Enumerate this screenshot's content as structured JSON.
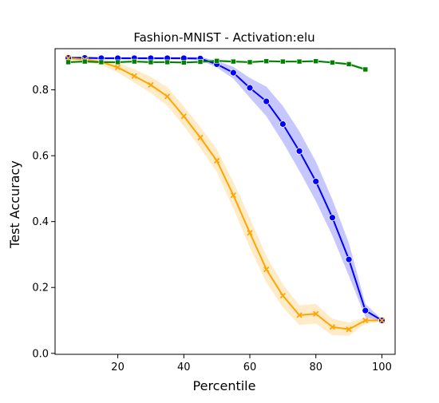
{
  "chart_data": {
    "type": "line",
    "title": "Fashion-MNIST - Activation:elu",
    "xlabel": "Percentile",
    "ylabel": "Test Accuracy",
    "xlim": [
      1,
      104
    ],
    "ylim": [
      -0.003,
      0.925
    ],
    "xticks": [
      20,
      40,
      60,
      80,
      100
    ],
    "yticks": [
      0.0,
      0.2,
      0.4,
      0.6,
      0.8
    ],
    "xtick_labels": [
      "20",
      "40",
      "60",
      "80",
      "100"
    ],
    "ytick_labels": [
      "0.0",
      "0.2",
      "0.4",
      "0.6",
      "0.8"
    ],
    "grid": false,
    "legend": "none",
    "x": [
      5,
      10,
      15,
      20,
      25,
      30,
      35,
      40,
      45,
      50,
      55,
      60,
      65,
      70,
      75,
      80,
      85,
      90,
      95,
      100
    ],
    "series": [
      {
        "color": "#0000ff",
        "marker": "circle",
        "values": [
          0.897,
          0.897,
          0.896,
          0.896,
          0.896,
          0.896,
          0.896,
          0.896,
          0.895,
          0.878,
          0.852,
          0.806,
          0.765,
          0.696,
          0.614,
          0.522,
          0.412,
          0.285,
          0.13,
          0.1
        ],
        "band": [
          0.004,
          0.004,
          0.004,
          0.004,
          0.004,
          0.004,
          0.004,
          0.004,
          0.005,
          0.01,
          0.018,
          0.03,
          0.045,
          0.055,
          0.06,
          0.06,
          0.055,
          0.05,
          0.02,
          0.003
        ]
      },
      {
        "color": "#ffa500",
        "marker": "x",
        "values": [
          0.896,
          0.892,
          0.885,
          0.868,
          0.842,
          0.815,
          0.78,
          0.72,
          0.655,
          0.585,
          0.48,
          0.366,
          0.255,
          0.175,
          0.116,
          0.12,
          0.08,
          0.073,
          0.1,
          0.1
        ],
        "band": [
          0.004,
          0.006,
          0.01,
          0.015,
          0.02,
          0.025,
          0.028,
          0.03,
          0.032,
          0.035,
          0.04,
          0.045,
          0.04,
          0.035,
          0.03,
          0.03,
          0.025,
          0.02,
          0.01,
          0.003
        ]
      },
      {
        "color": "#008000",
        "marker": "square",
        "values": [
          0.884,
          0.886,
          0.884,
          0.884,
          0.886,
          0.884,
          0.884,
          0.883,
          0.885,
          0.888,
          0.886,
          0.884,
          0.887,
          0.886,
          0.886,
          0.887,
          0.883,
          0.878,
          0.862,
          null
        ],
        "band": [
          0.003,
          0.003,
          0.003,
          0.003,
          0.003,
          0.003,
          0.003,
          0.003,
          0.003,
          0.003,
          0.003,
          0.003,
          0.003,
          0.003,
          0.003,
          0.003,
          0.003,
          0.004,
          0.005,
          0
        ]
      }
    ]
  }
}
